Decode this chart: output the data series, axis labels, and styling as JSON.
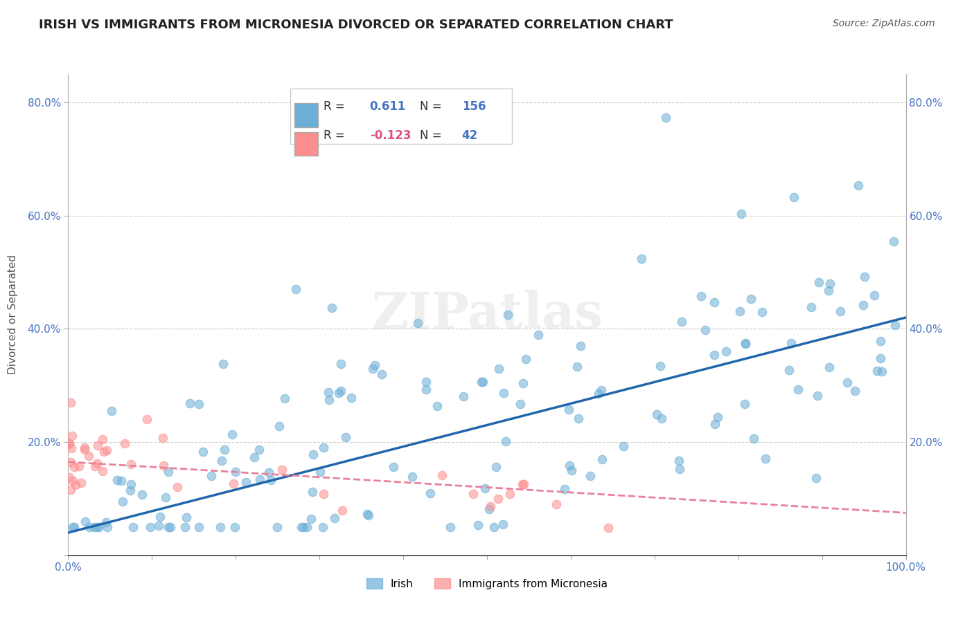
{
  "title": "IRISH VS IMMIGRANTS FROM MICRONESIA DIVORCED OR SEPARATED CORRELATION CHART",
  "source": "Source: ZipAtlas.com",
  "ylabel": "Divorced or Separated",
  "xlabel": "",
  "xlim": [
    0.0,
    1.0
  ],
  "ylim": [
    0.0,
    0.85
  ],
  "xticks": [
    0.0,
    0.1,
    0.2,
    0.3,
    0.4,
    0.5,
    0.6,
    0.7,
    0.8,
    0.9,
    1.0
  ],
  "yticks": [
    0.0,
    0.2,
    0.4,
    0.6,
    0.8
  ],
  "ytick_labels": [
    "",
    "20.0%",
    "40.0%",
    "60.0%",
    "80.0%"
  ],
  "xtick_labels": [
    "0.0%",
    "",
    "",
    "",
    "",
    "",
    "",
    "",
    "",
    "",
    "100.0%"
  ],
  "blue_R": 0.611,
  "blue_N": 156,
  "pink_R": -0.123,
  "pink_N": 42,
  "blue_color": "#6baed6",
  "pink_color": "#fc8d8d",
  "blue_line_color": "#2166ac",
  "pink_line_color": "#e8829a",
  "legend_label_blue": "Irish",
  "legend_label_pink": "Immigrants from Micronesia",
  "watermark": "ZIPatlas",
  "background_color": "#ffffff",
  "grid_color": "#cccccc",
  "title_color": "#222222",
  "axis_label_color": "#555555",
  "blue_slope": 0.38,
  "blue_intercept": 0.04,
  "pink_slope": -0.09,
  "pink_intercept": 0.165
}
